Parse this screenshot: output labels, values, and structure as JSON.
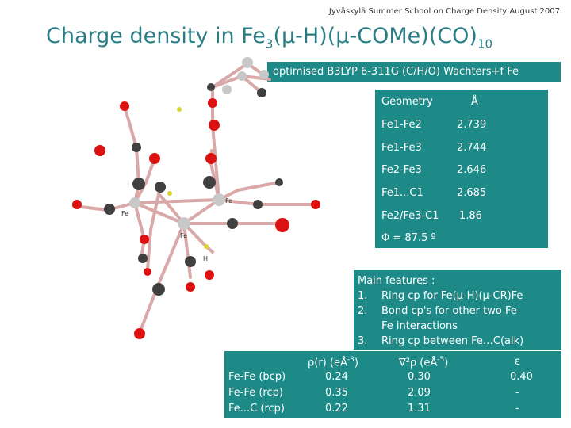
{
  "header": "Jyväskylä Summer School on Charge Density August 2007",
  "title": {
    "main": "Charge density in Fe",
    "sub3": "3",
    "mid": "(μ-H)(μ-COMe)(CO)",
    "sub10": "10"
  },
  "subtitle": "optimised B3LYP 6-311G (C/H/O) Wachters+f Fe",
  "geometry": {
    "header": [
      "Geometry",
      "Å"
    ],
    "rows": [
      [
        "Fe1-Fe2",
        "2.739"
      ],
      [
        "Fe1-Fe3",
        "2.744"
      ],
      [
        "Fe2-Fe3",
        "2.646"
      ],
      [
        "Fe1...C1",
        "2.685"
      ],
      [
        "Fe2/Fe3-C1",
        "1.86"
      ]
    ],
    "phi": "Φ = 87.5 º"
  },
  "features": {
    "title": "Main features :",
    "items": [
      {
        "num": "1.",
        "text": "Ring cp for Fe(μ-H)(μ-CR)Fe"
      },
      {
        "num": "2.",
        "text": "Bond cp's for other two Fe-"
      },
      {
        "num": "",
        "text": "Fe interactions"
      },
      {
        "num": "3.",
        "text": "Ring cp between Fe…C(alk)"
      }
    ]
  },
  "density": {
    "headers": {
      "rho": "ρ(r) (eÅ",
      "rho_exp": "-3",
      "lap": "∇²ρ (eÅ",
      "lap_exp": "-5",
      "eps": "ε"
    },
    "rows": [
      {
        "label": "Fe-Fe (bcp)",
        "rho": "0.24",
        "lap": "0.30",
        "eps": "0.40"
      },
      {
        "label": "Fe-Fe (rcp)",
        "rho": "0.35",
        "lap": "2.09",
        "eps": "-"
      },
      {
        "label": "Fe...C (rcp)",
        "rho": "0.22",
        "lap": "1.31",
        "eps": "-"
      }
    ]
  },
  "molecule_labels": {
    "fe_a": "Fe",
    "fe_b": "Fe",
    "fe_c": "Fe",
    "h": "H"
  },
  "colors": {
    "panel": "#1d8a88",
    "title": "#2a7d85",
    "oxygen": "#dd1111",
    "carbon": "#404040",
    "iron": "#c0c0c0",
    "hydrogen": "#d7d72a"
  }
}
